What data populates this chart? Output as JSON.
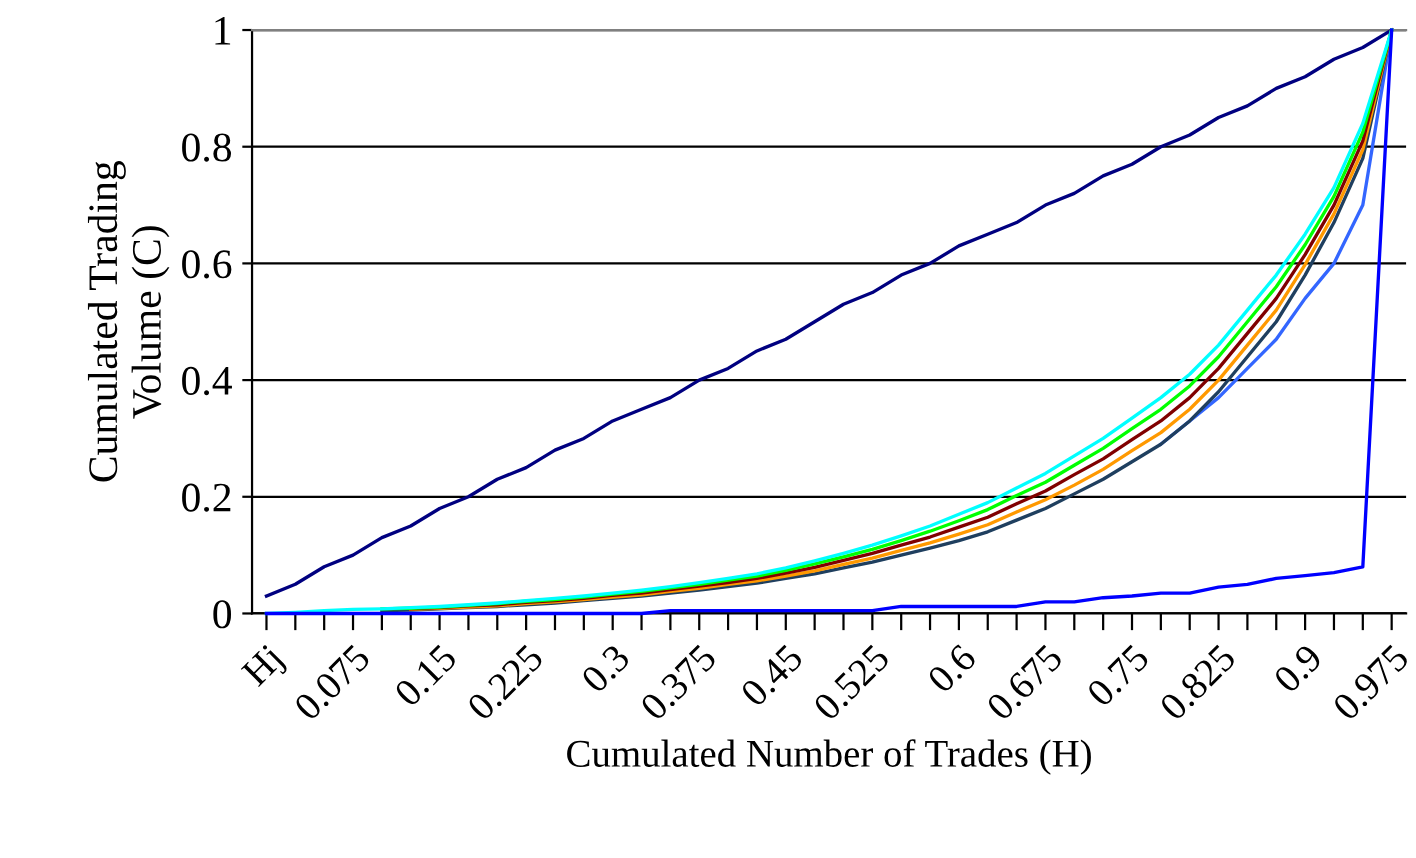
{
  "chart_data": {
    "type": "line",
    "xlabel": "Cumulated Number of Trades (H)",
    "ylabel": "Cumulated Trading\nVolume (C)",
    "categories": [
      "Hj",
      null,
      null,
      "0.075",
      null,
      null,
      "0.15",
      null,
      null,
      "0.225",
      null,
      null,
      "0.3",
      null,
      null,
      "0.375",
      null,
      null,
      "0.45",
      null,
      null,
      "0.525",
      null,
      null,
      "0.6",
      null,
      null,
      "0.675",
      null,
      null,
      "0.75",
      null,
      null,
      "0.825",
      null,
      null,
      "0.9",
      null,
      null,
      "0.975"
    ],
    "series": [
      {
        "color": "#000080",
        "values": [
          0.03,
          0.05,
          0.08,
          0.1,
          0.13,
          0.15,
          0.18,
          0.2,
          0.23,
          0.25,
          0.28,
          0.3,
          0.33,
          0.35,
          0.37,
          0.4,
          0.42,
          0.45,
          0.47,
          0.5,
          0.53,
          0.55,
          0.58,
          0.6,
          0.63,
          0.65,
          0.67,
          0.7,
          0.72,
          0.75,
          0.77,
          0.8,
          0.82,
          0.85,
          0.87,
          0.9,
          0.92,
          0.95,
          0.97,
          1.0
        ]
      },
      {
        "color": "#3366ff",
        "values": [
          null,
          null,
          null,
          null,
          null,
          null,
          null,
          null,
          null,
          null,
          null,
          null,
          null,
          null,
          null,
          null,
          null,
          null,
          null,
          null,
          null,
          null,
          null,
          null,
          null,
          null,
          null,
          null,
          null,
          null,
          null,
          0.29,
          0.33,
          0.37,
          0.42,
          0.47,
          0.54,
          0.6,
          0.7,
          1
        ]
      },
      {
        "color": "#1f3f5f",
        "values": [
          null,
          null,
          null,
          null,
          0.005,
          0.006,
          0.008,
          0.01,
          0.012,
          0.015,
          0.018,
          0.022,
          0.026,
          0.03,
          0.035,
          0.04,
          0.046,
          0.052,
          0.06,
          0.068,
          0.078,
          0.088,
          0.1,
          0.112,
          0.125,
          0.14,
          0.16,
          0.18,
          0.205,
          0.23,
          0.26,
          0.29,
          0.33,
          0.38,
          0.44,
          0.5,
          0.58,
          0.67,
          0.78,
          1
        ]
      },
      {
        "color": "#ff9900",
        "values": [
          null,
          null,
          null,
          null,
          null,
          0.007,
          0.009,
          0.011,
          0.013,
          0.017,
          0.02,
          0.024,
          0.028,
          0.032,
          0.038,
          0.043,
          0.05,
          0.056,
          0.064,
          0.073,
          0.084,
          0.095,
          0.108,
          0.121,
          0.136,
          0.152,
          0.174,
          0.195,
          0.22,
          0.247,
          0.279,
          0.31,
          0.35,
          0.4,
          0.46,
          0.52,
          0.598,
          0.685,
          0.795,
          1
        ]
      },
      {
        "color": "#800000",
        "values": [
          null,
          null,
          null,
          null,
          null,
          0.008,
          0.01,
          0.013,
          0.015,
          0.019,
          0.022,
          0.026,
          0.031,
          0.035,
          0.041,
          0.047,
          0.053,
          0.06,
          0.069,
          0.079,
          0.091,
          0.103,
          0.117,
          0.131,
          0.148,
          0.165,
          0.188,
          0.21,
          0.238,
          0.265,
          0.298,
          0.33,
          0.37,
          0.42,
          0.48,
          0.54,
          0.615,
          0.7,
          0.81,
          1
        ]
      },
      {
        "color": "#00ff00",
        "values": [
          null,
          null,
          null,
          null,
          0.008,
          0.009,
          0.011,
          0.014,
          0.017,
          0.021,
          0.024,
          0.028,
          0.033,
          0.038,
          0.044,
          0.05,
          0.057,
          0.064,
          0.074,
          0.085,
          0.097,
          0.11,
          0.125,
          0.141,
          0.159,
          0.178,
          0.202,
          0.225,
          0.254,
          0.283,
          0.317,
          0.35,
          0.39,
          0.44,
          0.5,
          0.56,
          0.632,
          0.715,
          0.825,
          1
        ]
      },
      {
        "color": "#00ffff",
        "values": [
          0,
          0.002,
          0.005,
          0.007,
          0.008,
          0.01,
          0.012,
          0.015,
          0.018,
          0.022,
          0.026,
          0.03,
          0.035,
          0.04,
          0.046,
          0.053,
          0.06,
          0.068,
          0.078,
          0.09,
          0.103,
          0.117,
          0.133,
          0.15,
          0.17,
          0.19,
          0.215,
          0.24,
          0.27,
          0.3,
          0.335,
          0.37,
          0.41,
          0.46,
          0.52,
          0.58,
          0.65,
          0.73,
          0.84,
          1
        ]
      },
      {
        "color": "#0000ff",
        "values": [
          0,
          0,
          0,
          0,
          0,
          0,
          0,
          0,
          0,
          0,
          0,
          0,
          0,
          0,
          0.005,
          0.005,
          0.005,
          0.005,
          0.005,
          0.005,
          0.005,
          0.005,
          0.012,
          0.012,
          0.012,
          0.012,
          0.012,
          0.02,
          0.02,
          0.027,
          0.03,
          0.035,
          0.035,
          0.045,
          0.05,
          0.06,
          0.065,
          0.07,
          0.08,
          1
        ]
      }
    ],
    "ylim": [
      0,
      1
    ],
    "yticks": [
      0,
      0.2,
      0.4,
      0.6,
      0.8,
      1
    ],
    "grid": "y",
    "legend": false,
    "marker": "none",
    "line_style": "solid"
  }
}
